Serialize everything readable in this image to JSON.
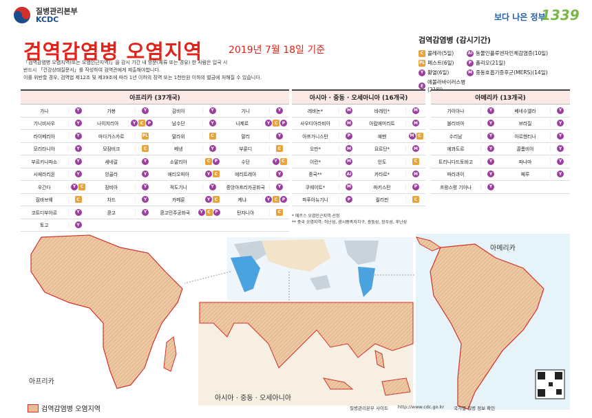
{
  "header": {
    "org": "질병관리본부",
    "org_en": "KCDC",
    "title": "검역감염병 오염지역",
    "date": "2019년 7월 18일 기준",
    "slogan": "보다 나은 정부",
    "hotline": "1339"
  },
  "notice": {
    "lines": [
      "「검역감염병 오염지역(또는 오염인근지역)」을 감시 기간 내 방문(체류 또는 경유) 한 사람은 입국 시",
      "반드시 「건강상태질문서」를 작성하여 검역관에게 제출해야합니다.",
      "이를 위반할 경우, 검역법 제12조 및 제39조에 따라 1년 이하의 징역 또는 1천만원 이하의 벌금에 처해질 수 있습니다."
    ]
  },
  "legend": {
    "title": "검역감염병 (감시기간)",
    "items": [
      {
        "code": "C",
        "label": "콜레라(5일)"
      },
      {
        "code": "AI",
        "label": "동물인플루엔자인체감염증(10일)"
      },
      {
        "code": "PL",
        "label": "페스트(6일)"
      },
      {
        "code": "P",
        "label": "폴리오(21일)"
      },
      {
        "code": "Y",
        "label": "황열(6일)"
      },
      {
        "code": "M",
        "label": "중동호흡기증후군(MERS)(14일)"
      },
      {
        "code": "E",
        "label": "에볼라바이러스병(21일)"
      }
    ]
  },
  "africa": {
    "title": "아프리카 (37개국)",
    "rows": [
      [
        {
          "name": "가나",
          "badges": [
            "Y"
          ]
        },
        {
          "name": "가봉",
          "badges": [
            "Y"
          ]
        },
        {
          "name": "감비아",
          "badges": [
            "Y"
          ]
        },
        {
          "name": "기니",
          "badges": [
            "Y"
          ]
        }
      ],
      [
        {
          "name": "기니비사우",
          "badges": [
            "Y"
          ]
        },
        {
          "name": "나이지리아",
          "badges": [
            "Y",
            "C",
            "P"
          ]
        },
        {
          "name": "남수단",
          "badges": [
            "Y"
          ]
        },
        {
          "name": "니제르",
          "badges": [
            "Y",
            "C",
            "P"
          ]
        }
      ],
      [
        {
          "name": "라이베리아",
          "badges": [
            "Y"
          ]
        },
        {
          "name": "마다가스카르",
          "badges": [
            "PL"
          ]
        },
        {
          "name": "말라위",
          "badges": [
            "C"
          ]
        },
        {
          "name": "말리",
          "badges": [
            "Y"
          ]
        }
      ],
      [
        {
          "name": "모리타니아",
          "badges": [
            "Y"
          ]
        },
        {
          "name": "모잠비크",
          "badges": [
            "C"
          ]
        },
        {
          "name": "베냉",
          "badges": [
            "Y"
          ]
        },
        {
          "name": "부룬디",
          "badges": [
            "C"
          ]
        }
      ],
      [
        {
          "name": "부르키나파소",
          "badges": [
            "Y"
          ]
        },
        {
          "name": "세네갈",
          "badges": [
            "Y"
          ]
        },
        {
          "name": "소말리아",
          "badges": [
            "C",
            "P"
          ]
        },
        {
          "name": "수단",
          "badges": [
            "Y",
            "C"
          ]
        }
      ],
      [
        {
          "name": "시에라리온",
          "badges": [
            "Y"
          ]
        },
        {
          "name": "앙골라",
          "badges": [
            "Y"
          ]
        },
        {
          "name": "에티오피아",
          "badges": [
            "Y",
            "C"
          ]
        },
        {
          "name": "에리트레아",
          "badges": [
            "Y"
          ]
        }
      ],
      [
        {
          "name": "우간다",
          "badges": [
            "Y",
            "C"
          ]
        },
        {
          "name": "잠비아",
          "badges": [
            "Y"
          ]
        },
        {
          "name": "적도기니",
          "badges": [
            "Y"
          ]
        },
        {
          "name": "중앙아프리카공화국",
          "badges": [
            "Y"
          ]
        }
      ],
      [
        {
          "name": "짐바브웨",
          "badges": [
            "C"
          ]
        },
        {
          "name": "차드",
          "badges": [
            "Y"
          ]
        },
        {
          "name": "카메룬",
          "badges": [
            "Y",
            "C"
          ]
        },
        {
          "name": "케냐",
          "badges": [
            "Y",
            "C",
            "P"
          ]
        }
      ],
      [
        {
          "name": "코트디부아르",
          "badges": [
            "Y"
          ]
        },
        {
          "name": "콩고",
          "badges": [
            "Y"
          ]
        },
        {
          "name": "콩고민주공화국",
          "badges": [
            "Y",
            "C",
            "P"
          ]
        },
        {
          "name": "탄자니아",
          "badges": [
            "C"
          ]
        }
      ],
      [
        {
          "name": "토고",
          "badges": [
            "Y"
          ]
        }
      ]
    ]
  },
  "asia": {
    "title": "아시아 · 중동 · 오세아니아 (16개국)",
    "rows": [
      [
        {
          "name": "레바논*",
          "badges": [
            "M"
          ]
        },
        {
          "name": "바레인*",
          "badges": [
            "M"
          ]
        }
      ],
      [
        {
          "name": "사우디아라비아",
          "badges": [
            "M"
          ]
        },
        {
          "name": "아랍에미리트",
          "badges": [
            "M"
          ]
        }
      ],
      [
        {
          "name": "아프가니스탄",
          "badges": [
            "P"
          ]
        },
        {
          "name": "예멘",
          "badges": [
            "M",
            "C"
          ]
        }
      ],
      [
        {
          "name": "오만*",
          "badges": [
            "M"
          ]
        },
        {
          "name": "요르단*",
          "badges": [
            "M"
          ]
        }
      ],
      [
        {
          "name": "이란*",
          "badges": [
            "M"
          ]
        },
        {
          "name": "인도",
          "badges": [
            "C"
          ]
        }
      ],
      [
        {
          "name": "중국**",
          "badges": [
            "AI"
          ]
        },
        {
          "name": "카타르*",
          "badges": [
            "M"
          ]
        }
      ],
      [
        {
          "name": "쿠웨이트*",
          "badges": [
            "M"
          ]
        },
        {
          "name": "파키스탄",
          "badges": [
            "P"
          ]
        }
      ],
      [
        {
          "name": "파푸아뉴기니",
          "badges": [
            "P"
          ]
        },
        {
          "name": "필리핀",
          "badges": [
            "C"
          ]
        }
      ]
    ]
  },
  "americas": {
    "title": "아메리카 (13개국)",
    "rows": [
      [
        {
          "name": "가이아나",
          "badges": [
            "Y"
          ]
        },
        {
          "name": "베네수엘라",
          "badges": [
            "Y"
          ]
        }
      ],
      [
        {
          "name": "볼리비아",
          "badges": [
            "Y"
          ]
        },
        {
          "name": "브라질",
          "badges": [
            "Y"
          ]
        }
      ],
      [
        {
          "name": "수리남",
          "badges": [
            "Y"
          ]
        },
        {
          "name": "아르헨티나",
          "badges": [
            "Y"
          ]
        }
      ],
      [
        {
          "name": "에콰도르",
          "badges": [
            "Y"
          ]
        },
        {
          "name": "콜롬비아",
          "badges": [
            "Y"
          ]
        }
      ],
      [
        {
          "name": "트리니다드토바고",
          "badges": [
            "Y"
          ]
        },
        {
          "name": "파나마",
          "badges": [
            "Y"
          ]
        }
      ],
      [
        {
          "name": "파라과이",
          "badges": [
            "Y"
          ]
        },
        {
          "name": "페루",
          "badges": [
            "Y"
          ]
        }
      ],
      [
        {
          "name": "프랑스령 기아나",
          "badges": [
            "Y"
          ]
        }
      ]
    ]
  },
  "footnotes": [
    "* 메르스 오염인근지역 선정",
    "** 중국 오염지역: 허난성, 광시좡족자치구, 광둥성, 장쑤성, 후난성"
  ],
  "maps": {
    "africa": "아프리카",
    "asia": "아시아 · 중동 · 오세아니아",
    "americas": "아메리카",
    "legend": "검역감염병 오염지역"
  },
  "footer": {
    "site": "질병관리본부 사이트",
    "url": "http://www.cdc.go.kr",
    "qr": "국가별 질병 정보 확인"
  }
}
